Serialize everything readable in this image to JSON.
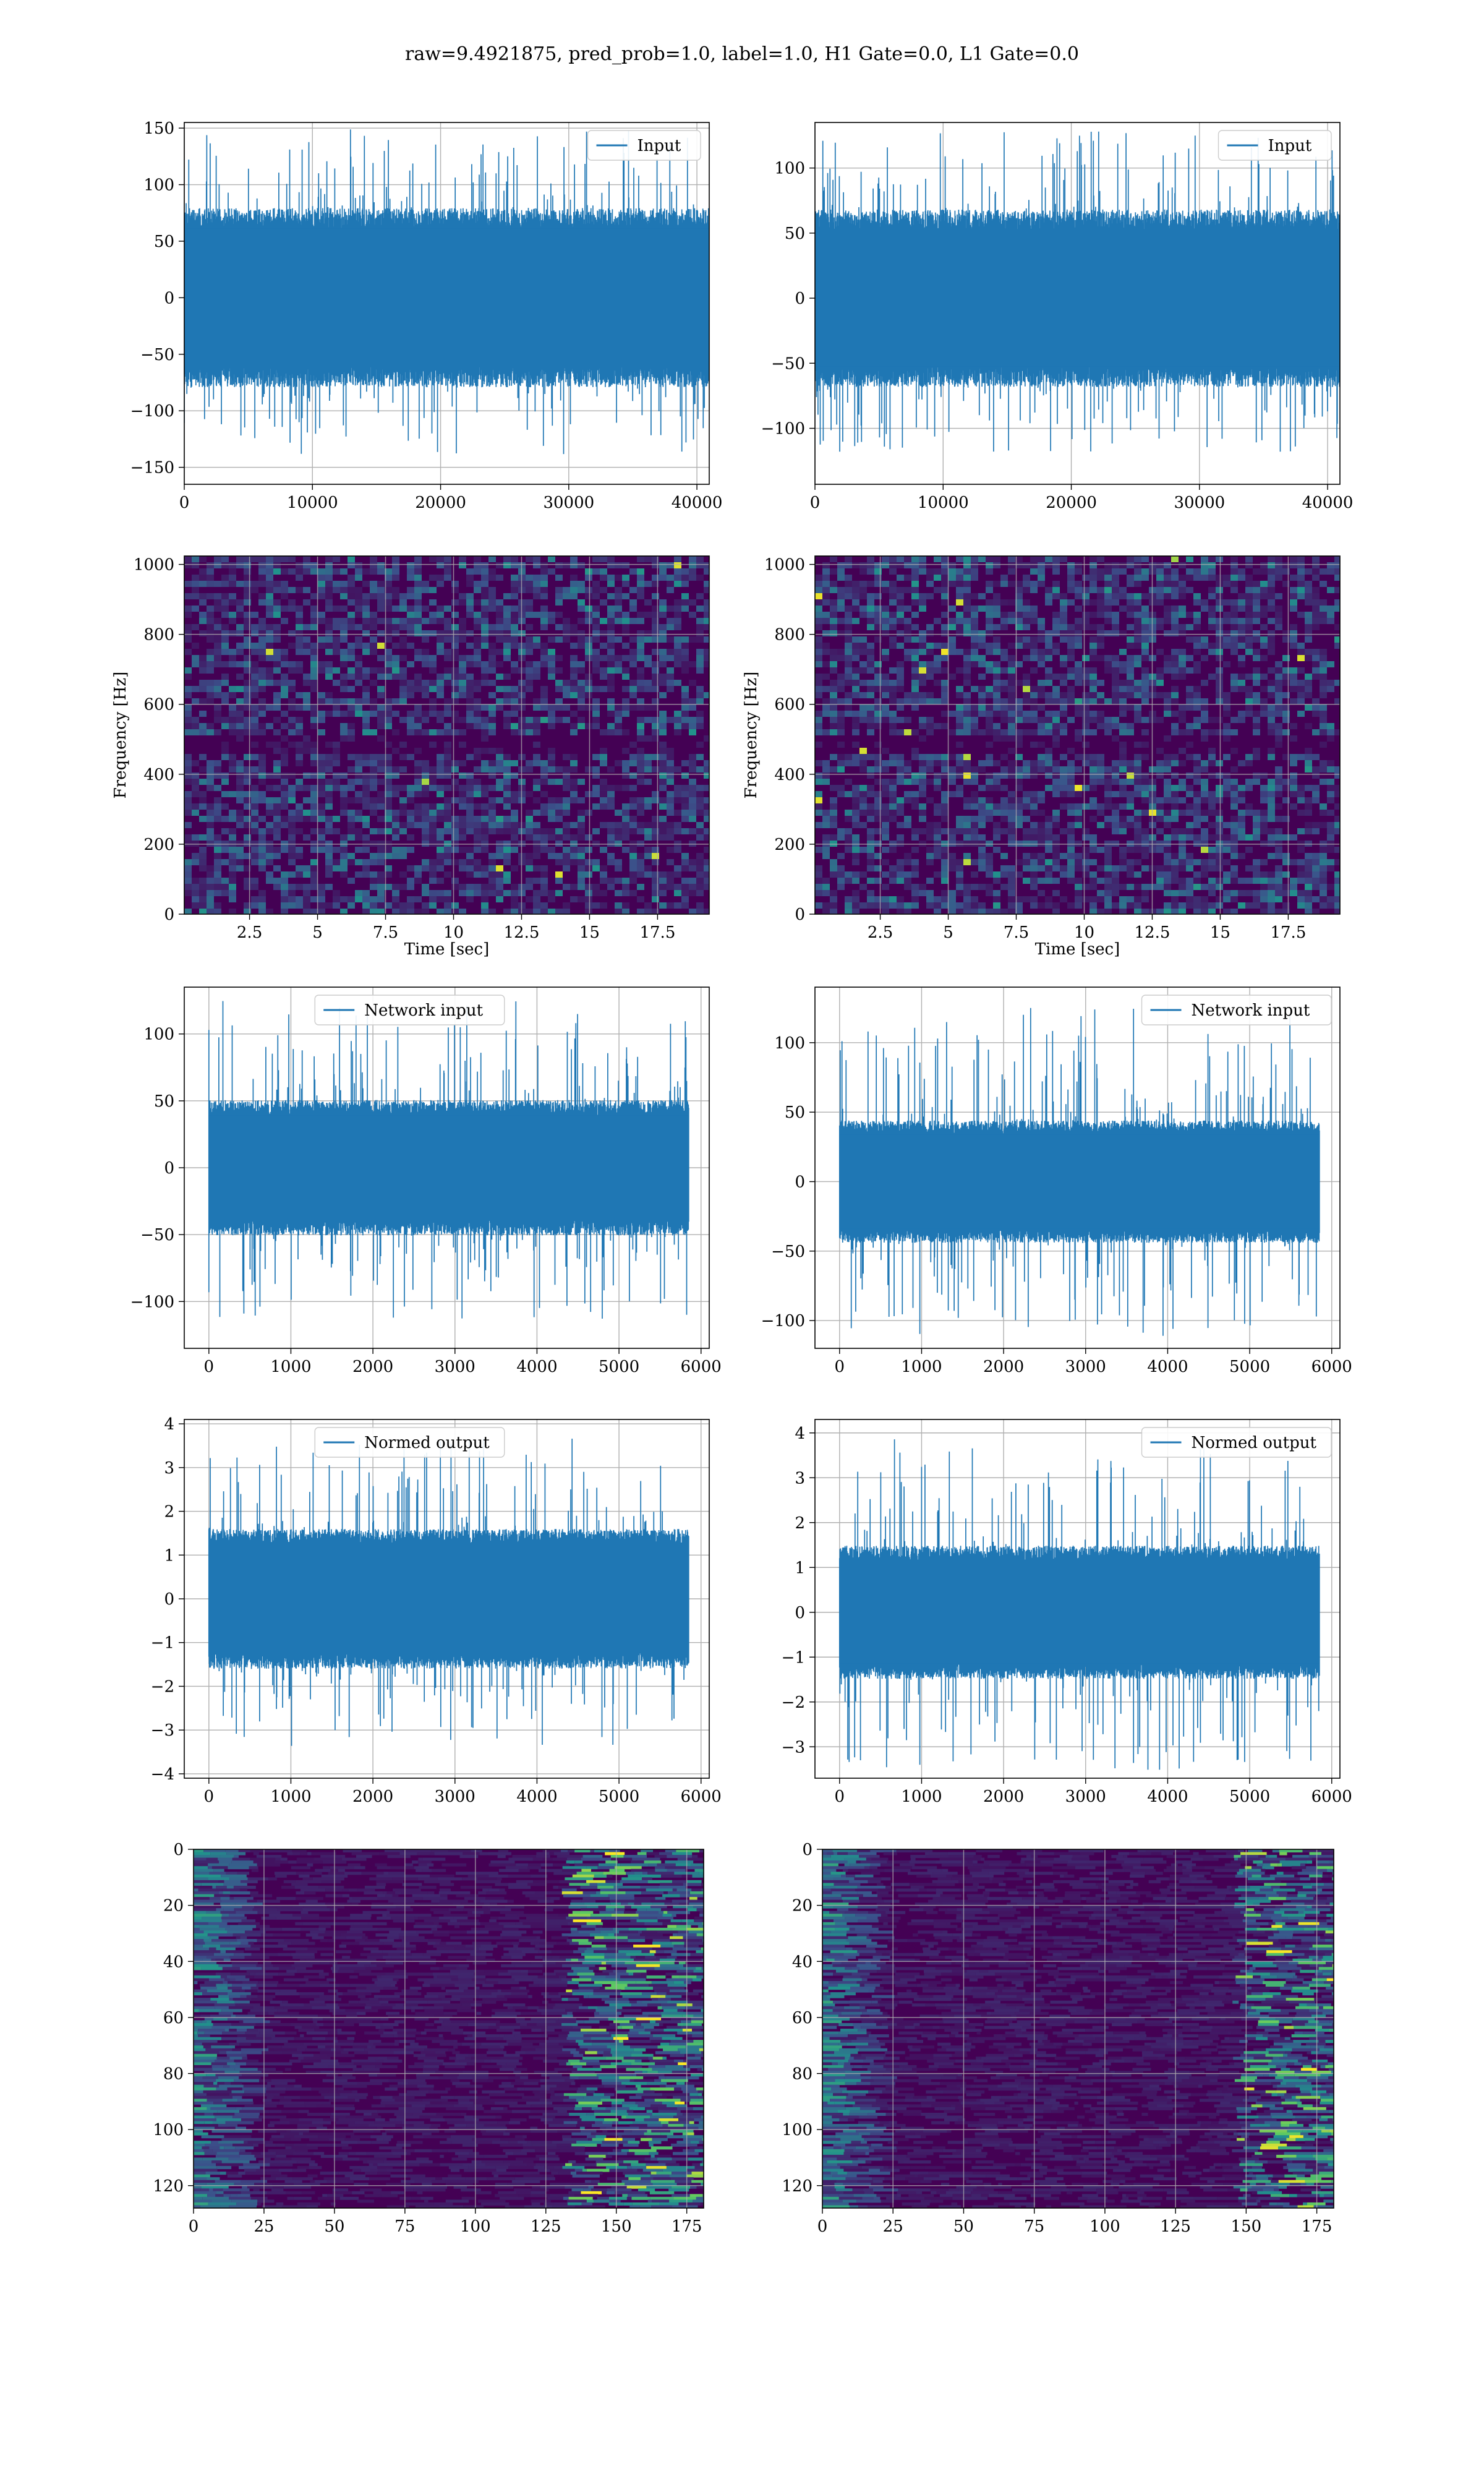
{
  "suptitle": "raw=9.4921875, pred_prob=1.0, label=1.0, H1 Gate=0.0, L1 Gate=0.0",
  "colors": {
    "line": "#1f77b4",
    "grid": "#b0b0b0",
    "viridis_dark": "#440154"
  },
  "chart_data": [
    {
      "id": "input_h1",
      "type": "line",
      "series": [
        {
          "name": "Input",
          "values": "dense noise, amplitude ~ +/-75, peaks to ~145"
        }
      ],
      "xlim": [
        0,
        40960
      ],
      "ylim": [
        -165,
        155
      ],
      "xticks": [
        0,
        10000,
        20000,
        30000,
        40000
      ],
      "yticks": [
        -150,
        -100,
        -50,
        0,
        50,
        100,
        150
      ],
      "legend": "upper right",
      "grid": true,
      "amp": 72,
      "spike": 150,
      "seed": 11
    },
    {
      "id": "input_l1",
      "type": "line",
      "series": [
        {
          "name": "Input",
          "values": "dense noise, amplitude ~ +/-60, peaks to ~125"
        }
      ],
      "xlim": [
        0,
        40960
      ],
      "ylim": [
        -143,
        135
      ],
      "xticks": [
        0,
        10000,
        20000,
        30000,
        40000
      ],
      "yticks": [
        -100,
        -50,
        0,
        50,
        100
      ],
      "legend": "upper right",
      "grid": true,
      "amp": 62,
      "spike": 128,
      "seed": 23
    },
    {
      "id": "spec_h1",
      "type": "heatmap",
      "xlabel": "Time [sec]",
      "ylabel": "Frequency [Hz]",
      "xlim": [
        0.1,
        19.4
      ],
      "ylim": [
        0,
        1024
      ],
      "xticks": [
        2.5,
        5.0,
        7.5,
        10.0,
        12.5,
        15.0,
        17.5
      ],
      "yticks": [
        0,
        200,
        400,
        600,
        800,
        1000
      ],
      "grid": true,
      "seed": 5
    },
    {
      "id": "spec_l1",
      "type": "heatmap",
      "xlabel": "Time [sec]",
      "ylabel": "Frequency [Hz]",
      "xlim": [
        0.1,
        19.4
      ],
      "ylim": [
        0,
        1024
      ],
      "xticks": [
        2.5,
        5.0,
        7.5,
        10.0,
        12.5,
        15.0,
        17.5
      ],
      "yticks": [
        0,
        200,
        400,
        600,
        800,
        1000
      ],
      "grid": true,
      "seed": 9
    },
    {
      "id": "net_h1",
      "type": "line",
      "series": [
        {
          "name": "Network input",
          "values": "dense noise, amplitude ~ +/-45, peaks to ~125"
        }
      ],
      "xlim": [
        -300,
        6100
      ],
      "ylim": [
        -135,
        135
      ],
      "xticks": [
        0,
        1000,
        2000,
        3000,
        4000,
        5000,
        6000
      ],
      "yticks": [
        -100,
        -50,
        0,
        50,
        100
      ],
      "legend": "upper center",
      "grid": true,
      "amp": 46,
      "spike": 125,
      "xmax": 5850,
      "seed": 31
    },
    {
      "id": "net_l1",
      "type": "line",
      "series": [
        {
          "name": "Network input",
          "values": "dense noise, amplitude ~ +/-40, peaks to ~130"
        }
      ],
      "xlim": [
        -300,
        6100
      ],
      "ylim": [
        -120,
        140
      ],
      "xticks": [
        0,
        1000,
        2000,
        3000,
        4000,
        5000,
        6000
      ],
      "yticks": [
        -100,
        -50,
        0,
        50,
        100
      ],
      "legend": "upper right",
      "grid": true,
      "amp": 40,
      "spike": 125,
      "xmax": 5850,
      "seed": 37
    },
    {
      "id": "norm_h1",
      "type": "line",
      "series": [
        {
          "name": "Normed output",
          "values": "dense noise, amplitude ~ +/-1.4, peaks to ~3.8"
        }
      ],
      "xlim": [
        -300,
        6100
      ],
      "ylim": [
        -4.1,
        4.1
      ],
      "xticks": [
        0,
        1000,
        2000,
        3000,
        4000,
        5000,
        6000
      ],
      "yticks": [
        -4,
        -3,
        -2,
        -1,
        0,
        1,
        2,
        3,
        4
      ],
      "legend": "upper center",
      "grid": true,
      "amp": 1.45,
      "spike": 3.7,
      "xmax": 5850,
      "seed": 41
    },
    {
      "id": "norm_l1",
      "type": "line",
      "series": [
        {
          "name": "Normed output",
          "values": "dense noise, amplitude ~ +/-1.3, peaks to ~4"
        }
      ],
      "xlim": [
        -300,
        6100
      ],
      "ylim": [
        -3.7,
        4.3
      ],
      "xticks": [
        0,
        1000,
        2000,
        3000,
        4000,
        5000,
        6000
      ],
      "yticks": [
        -3,
        -2,
        -1,
        0,
        1,
        2,
        3,
        4
      ],
      "legend": "upper right",
      "grid": true,
      "amp": 1.35,
      "spike": 3.9,
      "xmax": 5850,
      "seed": 43
    },
    {
      "id": "feat_h1",
      "type": "heatmap",
      "xlim": [
        0,
        181
      ],
      "ylim": [
        128,
        0
      ],
      "xticks": [
        0,
        25,
        50,
        75,
        100,
        125,
        150,
        175
      ],
      "yticks": [
        0,
        20,
        40,
        60,
        80,
        100,
        120
      ],
      "grid": true,
      "seed": 51
    },
    {
      "id": "feat_l1",
      "type": "heatmap",
      "xlim": [
        0,
        181
      ],
      "ylim": [
        128,
        0
      ],
      "xticks": [
        0,
        25,
        50,
        75,
        100,
        125,
        150,
        175
      ],
      "yticks": [
        0,
        20,
        40,
        60,
        80,
        100,
        120
      ],
      "grid": true,
      "seed": 57
    }
  ]
}
